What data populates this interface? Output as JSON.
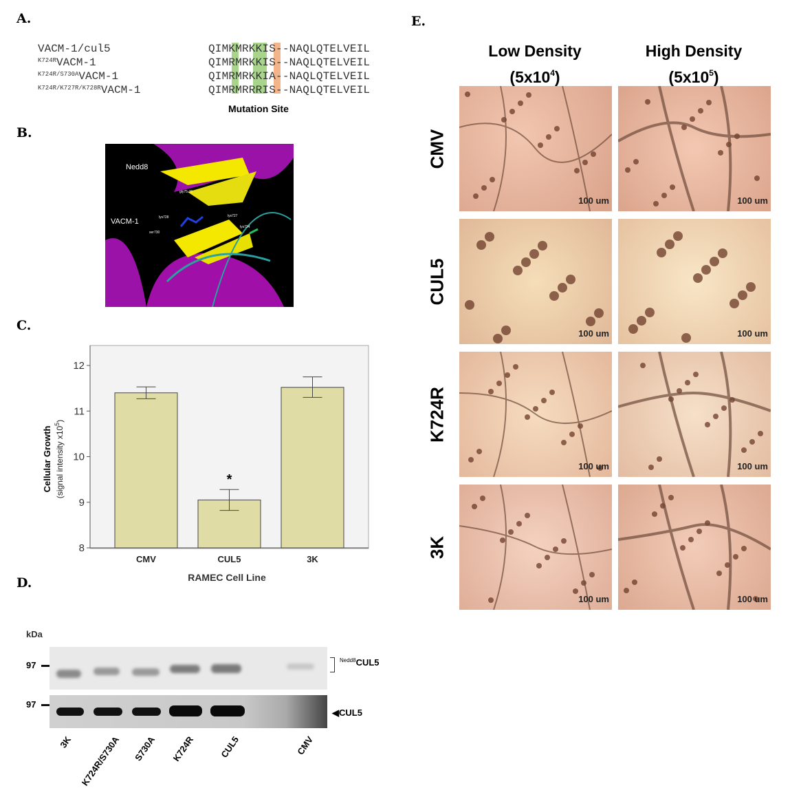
{
  "panels": {
    "a": "A.",
    "b": "B.",
    "c": "C.",
    "d": "D.",
    "e": "E."
  },
  "panel_a": {
    "rows": [
      {
        "sup": "",
        "name": "VACM-1/cul5",
        "seq": "QIMKMRKKIS--NAQLQTELVEIL"
      },
      {
        "sup": "K724R",
        "name": "VACM-1",
        "seq": "QIMRMRKKIS--NAQLQTELVEIL"
      },
      {
        "sup": "K724R/S730A",
        "name": "VACM-1",
        "seq": "QIMRMRKKIA--NAQLQTELVEIL"
      },
      {
        "sup": "K724R/K727R/K728R",
        "name": "VACM-1",
        "seq": "QIMRMRRRIS--NAQLQTELVEIL"
      }
    ],
    "caption": "Mutation Site",
    "colors": {
      "lysine": "#a8d48c",
      "serine": "#f3b48a"
    }
  },
  "panel_b": {
    "labels": {
      "nedd8": "Nedd8",
      "gly": "gly75-76",
      "vacm": "VACM-1",
      "lys728": "lys728",
      "lys727": "lys727",
      "lys724": "lys724",
      "ser730": "ser730"
    }
  },
  "chart_data": {
    "type": "bar",
    "categories": [
      "CMV",
      "CUL5",
      "3K"
    ],
    "values": [
      11.4,
      9.05,
      11.52
    ],
    "error_low": [
      11.27,
      8.82,
      11.3
    ],
    "error_high": [
      11.53,
      9.28,
      11.75
    ],
    "annotations": [
      "",
      "*",
      ""
    ],
    "xlabel": "RAMEC Cell Line",
    "ylabel": "Cellular Growth",
    "ylabel2": "(signal intensity x10",
    "ylabel2_sup": "5",
    "ylabel2_end": ")",
    "ylim": [
      8,
      12
    ],
    "yticks": [
      "8",
      "9",
      "10",
      "11",
      "12"
    ],
    "bar_color": "#e0dca6",
    "grid": false
  },
  "panel_d": {
    "kda": "kDa",
    "marker": "97",
    "upper_label_sup": "Nedd8",
    "upper_label": "CUL5",
    "lower_label": "CUL5",
    "lanes": [
      "3K",
      "K724R/S730A",
      "S730A",
      "K724R",
      "CUL5",
      "CMV"
    ]
  },
  "panel_e": {
    "columns": [
      {
        "title": "Low Density",
        "sub": "(5x10",
        "exp": "4"
      },
      {
        "title": "High Density",
        "sub": "(5x10",
        "exp": "5"
      }
    ],
    "rows": [
      "CMV",
      "CUL5",
      "K724R",
      "3K"
    ],
    "scale": "100 um"
  }
}
